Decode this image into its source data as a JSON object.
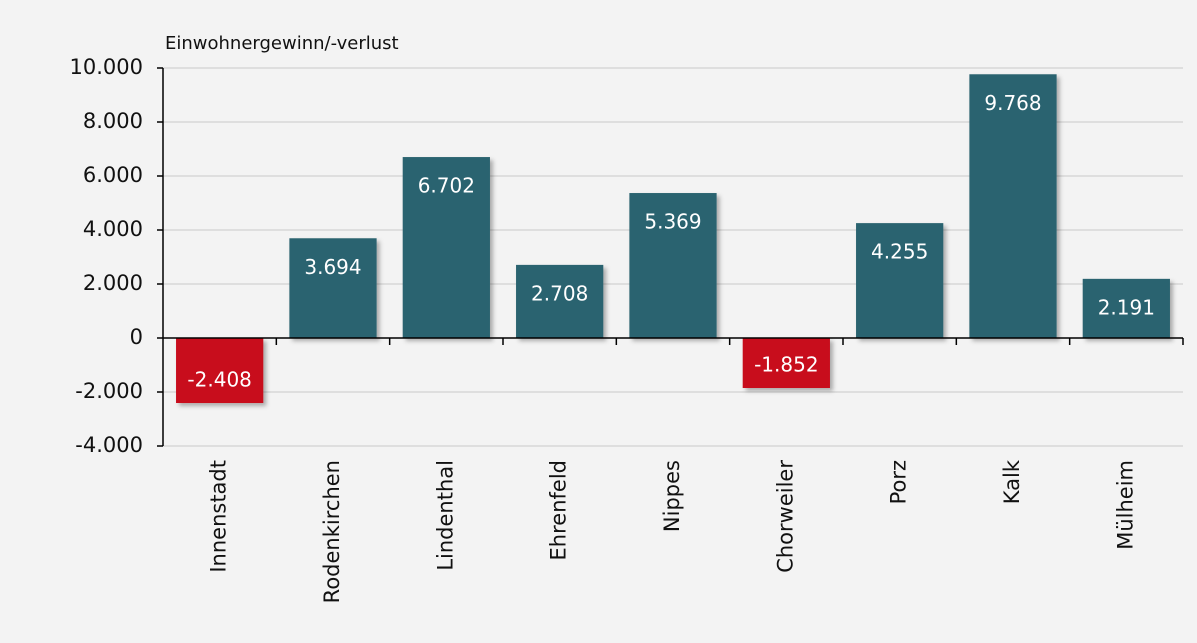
{
  "chart_data": {
    "type": "bar",
    "y_axis_label": "Einwohnergewinn/-verlust",
    "categories": [
      "Innenstadt",
      "Rodenkirchen",
      "Lindenthal",
      "Ehrenfeld",
      "Nippes",
      "Chorweiler",
      "Porz",
      "Kalk",
      "Mülheim"
    ],
    "values": [
      -2408,
      3694,
      6702,
      2708,
      5369,
      -1852,
      4255,
      9768,
      2191
    ],
    "value_labels": [
      "-2.408",
      "3.694",
      "6.702",
      "2.708",
      "5.369",
      "-1.852",
      "4.255",
      "9.768",
      "2.191"
    ],
    "colors": [
      "#c8101e",
      "#2b6470",
      "#2b6470",
      "#2b6470",
      "#2b6470",
      "#c8101e",
      "#2b6470",
      "#2b6470",
      "#2b6470"
    ],
    "ylim": [
      -4000,
      10000
    ],
    "yticks": [
      {
        "value": -4000,
        "label": "-4.000"
      },
      {
        "value": -2000,
        "label": "-2.000"
      },
      0,
      {
        "value": 2000,
        "label": "2.000"
      },
      {
        "value": 4000,
        "label": "4.000"
      },
      {
        "value": 6000,
        "label": "6.000"
      },
      {
        "value": 8000,
        "label": "8.000"
      },
      {
        "value": 10000,
        "label": "10.000"
      }
    ],
    "grid": true
  }
}
